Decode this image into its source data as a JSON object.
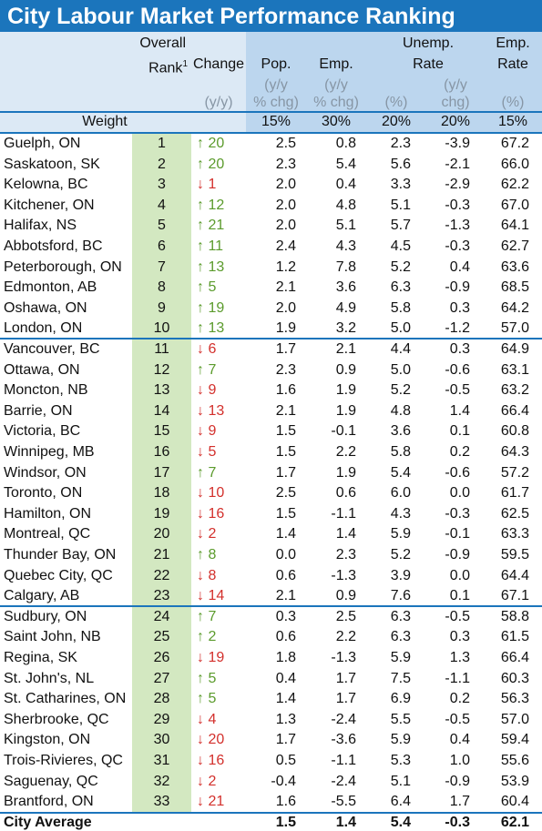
{
  "title": "City Labour Market Performance Ranking",
  "columns": {
    "rank": [
      "Overall",
      "Rank"
    ],
    "rank_note": "1",
    "change": [
      "Change",
      "(y/y)"
    ],
    "pop": [
      "Pop.",
      "(y/y",
      "% chg)"
    ],
    "emp": [
      "Emp.",
      "(y/y",
      "% chg)"
    ],
    "unemp": [
      "Unemp.",
      "Rate"
    ],
    "unemp_rate_unit": "(%)",
    "unemp_chg_unit": [
      "(y/y",
      "chg)"
    ],
    "emp_rate": [
      "Emp.",
      "Rate",
      "(%)"
    ]
  },
  "weight": {
    "label": "Weight",
    "values": [
      "15%",
      "30%",
      "20%",
      "20%",
      "15%"
    ]
  },
  "rows": [
    [
      "Guelph, ON",
      "1",
      "↑ 20",
      "2.5",
      "0.8",
      "2.3",
      "-3.9",
      "67.2"
    ],
    [
      "Saskatoon, SK",
      "2",
      "↑ 20",
      "2.3",
      "5.4",
      "5.6",
      "-2.1",
      "66.0"
    ],
    [
      "Kelowna, BC",
      "3",
      "↓ 1",
      "2.0",
      "0.4",
      "3.3",
      "-2.9",
      "62.2"
    ],
    [
      "Kitchener, ON",
      "4",
      "↑ 12",
      "2.0",
      "4.8",
      "5.1",
      "-0.3",
      "67.0"
    ],
    [
      "Halifax, NS",
      "5",
      "↑ 21",
      "2.0",
      "5.1",
      "5.7",
      "-1.3",
      "64.1"
    ],
    [
      "Abbotsford, BC",
      "6",
      "↑ 11",
      "2.4",
      "4.3",
      "4.5",
      "-0.3",
      "62.7"
    ],
    [
      "Peterborough, ON",
      "7",
      "↑ 13",
      "1.2",
      "7.8",
      "5.2",
      "0.4",
      "63.6"
    ],
    [
      "Edmonton, AB",
      "8",
      "↑ 5",
      "2.1",
      "3.6",
      "6.3",
      "-0.9",
      "68.5"
    ],
    [
      "Oshawa, ON",
      "9",
      "↑ 19",
      "2.0",
      "4.9",
      "5.8",
      "0.3",
      "64.2"
    ],
    [
      "London, ON",
      "10",
      "↑ 13",
      "1.9",
      "3.2",
      "5.0",
      "-1.2",
      "57.0"
    ],
    [
      "Vancouver, BC",
      "11",
      "↓ 6",
      "1.7",
      "2.1",
      "4.4",
      "0.3",
      "64.9"
    ],
    [
      "Ottawa, ON",
      "12",
      "↑ 7",
      "2.3",
      "0.9",
      "5.0",
      "-0.6",
      "63.1"
    ],
    [
      "Moncton, NB",
      "13",
      "↓ 9",
      "1.6",
      "1.9",
      "5.2",
      "-0.5",
      "63.2"
    ],
    [
      "Barrie, ON",
      "14",
      "↓ 13",
      "2.1",
      "1.9",
      "4.8",
      "1.4",
      "66.4"
    ],
    [
      "Victoria, BC",
      "15",
      "↓ 9",
      "1.5",
      "-0.1",
      "3.6",
      "0.1",
      "60.8"
    ],
    [
      "Winnipeg, MB",
      "16",
      "↓ 5",
      "1.5",
      "2.2",
      "5.8",
      "0.2",
      "64.3"
    ],
    [
      "Windsor, ON",
      "17",
      "↑ 7",
      "1.7",
      "1.9",
      "5.4",
      "-0.6",
      "57.2"
    ],
    [
      "Toronto, ON",
      "18",
      "↓ 10",
      "2.5",
      "0.6",
      "6.0",
      "0.0",
      "61.7"
    ],
    [
      "Hamilton, ON",
      "19",
      "↓ 16",
      "1.5",
      "-1.1",
      "4.3",
      "-0.3",
      "62.5"
    ],
    [
      "Montreal, QC",
      "20",
      "↓ 2",
      "1.4",
      "1.4",
      "5.9",
      "-0.1",
      "63.3"
    ],
    [
      "Thunder Bay, ON",
      "21",
      "↑ 8",
      "0.0",
      "2.3",
      "5.2",
      "-0.9",
      "59.5"
    ],
    [
      "Quebec City, QC",
      "22",
      "↓ 8",
      "0.6",
      "-1.3",
      "3.9",
      "0.0",
      "64.4"
    ],
    [
      "Calgary, AB",
      "23",
      "↓ 14",
      "2.1",
      "0.9",
      "7.6",
      "0.1",
      "67.1"
    ],
    [
      "Sudbury, ON",
      "24",
      "↑ 7",
      "0.3",
      "2.5",
      "6.3",
      "-0.5",
      "58.8"
    ],
    [
      "Saint John, NB",
      "25",
      "↑ 2",
      "0.6",
      "2.2",
      "6.3",
      "0.3",
      "61.5"
    ],
    [
      "Regina, SK",
      "26",
      "↓ 19",
      "1.8",
      "-1.3",
      "5.9",
      "1.3",
      "66.4"
    ],
    [
      "St. John's, NL",
      "27",
      "↑ 5",
      "0.4",
      "1.7",
      "7.5",
      "-1.1",
      "60.3"
    ],
    [
      "St. Catharines, ON",
      "28",
      "↑ 5",
      "1.4",
      "1.7",
      "6.9",
      "0.2",
      "56.3"
    ],
    [
      "Sherbrooke, QC",
      "29",
      "↓ 4",
      "1.3",
      "-2.4",
      "5.5",
      "-0.5",
      "57.0"
    ],
    [
      "Kingston, ON",
      "30",
      "↓ 20",
      "1.7",
      "-3.6",
      "5.9",
      "0.4",
      "59.4"
    ],
    [
      "Trois-Rivieres, QC",
      "31",
      "↓ 16",
      "0.5",
      "-1.1",
      "5.3",
      "1.0",
      "55.6"
    ],
    [
      "Saguenay, QC",
      "32",
      "↓ 2",
      "-0.4",
      "-2.4",
      "5.1",
      "-0.9",
      "53.9"
    ],
    [
      "Brantford, ON",
      "33",
      "↓ 21",
      "1.6",
      "-5.5",
      "6.4",
      "1.7",
      "60.4"
    ]
  ],
  "average": {
    "label": "City Average",
    "values": [
      "1.5",
      "1.4",
      "5.4",
      "-0.3",
      "62.1"
    ]
  }
}
